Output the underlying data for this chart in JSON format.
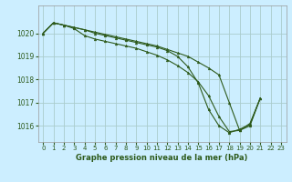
{
  "title": "Graphe pression niveau de la mer (hPa)",
  "background_color": "#cceeff",
  "grid_color": "#aacccc",
  "line_color": "#2d5a1b",
  "marker_color": "#2d5a1b",
  "xlim": [
    -0.5,
    23.5
  ],
  "ylim": [
    1015.3,
    1021.2
  ],
  "yticks": [
    1016,
    1017,
    1018,
    1019,
    1020
  ],
  "xticks": [
    0,
    1,
    2,
    3,
    4,
    5,
    6,
    7,
    8,
    9,
    10,
    11,
    12,
    13,
    14,
    15,
    16,
    17,
    18,
    19,
    20,
    21,
    22,
    23
  ],
  "series": [
    [
      1020.0,
      1020.45,
      1020.35,
      1020.25,
      1020.15,
      1020.05,
      1019.95,
      1019.85,
      1019.75,
      1019.65,
      1019.55,
      1019.45,
      1019.3,
      1019.15,
      1019.0,
      1018.75,
      1018.5,
      1018.2,
      1017.0,
      1015.8,
      1016.0,
      1017.2,
      null,
      null
    ],
    [
      1020.0,
      1020.45,
      1020.35,
      1020.2,
      1019.9,
      1019.75,
      1019.65,
      1019.55,
      1019.45,
      1019.35,
      1019.2,
      1019.05,
      1018.85,
      1018.6,
      1018.3,
      1017.9,
      1017.3,
      1016.4,
      1015.75,
      1015.8,
      1016.1,
      1017.2,
      null,
      null
    ],
    [
      1020.0,
      1020.45,
      1020.35,
      1020.25,
      1020.15,
      1020.0,
      1019.9,
      1019.8,
      1019.7,
      1019.6,
      1019.5,
      1019.4,
      1019.25,
      1019.0,
      1018.55,
      1017.85,
      1016.7,
      1016.0,
      1015.7,
      1015.85,
      1016.05,
      1017.2,
      null,
      null
    ]
  ]
}
